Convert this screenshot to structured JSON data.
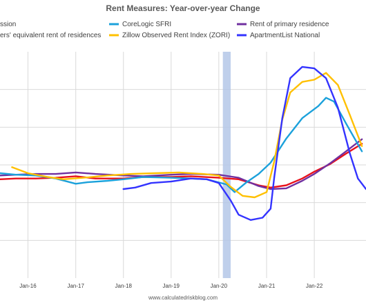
{
  "chart_data": {
    "type": "line",
    "title": "Rent Measures: Year-over-year Change",
    "source": "www.calculatedriskblog.com",
    "xlabel": "",
    "ylabel": "",
    "x_ticks": [
      "Jan-16",
      "Jan-17",
      "Jan-18",
      "Jan-19",
      "Jan-20",
      "Jan-21",
      "Jan-22"
    ],
    "x_range": [
      "2015-06-01",
      "2023-02-01"
    ],
    "y_range": [
      -10,
      20
    ],
    "y_gridlines": [
      -5,
      0,
      5,
      10,
      15
    ],
    "y_tick_labels_visible": false,
    "grid": "vertical and horizontal",
    "legend_placement": "top",
    "shaded_regions": [
      {
        "label": "Recession",
        "start": "2020-02-01",
        "end": "2020-04-01",
        "color": "#b4c7e7"
      }
    ],
    "series": [
      {
        "name": "Recession",
        "legend_text": "ssion",
        "kind": "band",
        "color": "#b4c7e7"
      },
      {
        "name": "Owners' equivalent rent of residences",
        "legend_text": "ers' equivalent rent of residences",
        "color": "#e8111c",
        "points": [
          [
            "2015-06-01",
            3.1
          ],
          [
            "2015-10-01",
            3.2
          ],
          [
            "2016-03-01",
            3.2
          ],
          [
            "2016-08-01",
            3.3
          ],
          [
            "2017-01-01",
            3.5
          ],
          [
            "2017-06-01",
            3.2
          ],
          [
            "2018-01-01",
            3.2
          ],
          [
            "2018-06-01",
            3.4
          ],
          [
            "2019-01-01",
            3.4
          ],
          [
            "2019-06-01",
            3.5
          ],
          [
            "2020-01-01",
            3.3
          ],
          [
            "2020-06-01",
            3.1
          ],
          [
            "2020-11-01",
            2.3
          ],
          [
            "2021-02-01",
            2.0
          ],
          [
            "2021-06-01",
            2.3
          ],
          [
            "2021-10-01",
            3.2
          ],
          [
            "2022-01-01",
            4.1
          ],
          [
            "2022-05-01",
            5.1
          ],
          [
            "2022-09-01",
            6.5
          ],
          [
            "2023-01-01",
            7.8
          ]
        ]
      },
      {
        "name": "Rent of primary residence",
        "legend_text": "Rent of primary residence",
        "color": "#7030a0",
        "points": [
          [
            "2015-06-01",
            3.6
          ],
          [
            "2015-10-01",
            3.7
          ],
          [
            "2016-03-01",
            3.8
          ],
          [
            "2016-08-01",
            3.8
          ],
          [
            "2017-01-01",
            4.0
          ],
          [
            "2017-06-01",
            3.8
          ],
          [
            "2018-01-01",
            3.6
          ],
          [
            "2018-06-01",
            3.5
          ],
          [
            "2019-01-01",
            3.7
          ],
          [
            "2019-06-01",
            3.8
          ],
          [
            "2020-01-01",
            3.7
          ],
          [
            "2020-06-01",
            3.3
          ],
          [
            "2020-11-01",
            2.2
          ],
          [
            "2021-02-01",
            1.8
          ],
          [
            "2021-06-01",
            1.9
          ],
          [
            "2021-10-01",
            2.9
          ],
          [
            "2022-01-01",
            3.8
          ],
          [
            "2022-05-01",
            5.2
          ],
          [
            "2022-09-01",
            6.8
          ],
          [
            "2023-01-01",
            8.4
          ]
        ]
      },
      {
        "name": "CoreLogic SFRI",
        "legend_text": "CoreLogic SFRI",
        "color": "#1ba1db",
        "points": [
          [
            "2015-06-01",
            3.9
          ],
          [
            "2015-10-01",
            3.7
          ],
          [
            "2016-03-01",
            3.6
          ],
          [
            "2016-08-01",
            3.2
          ],
          [
            "2017-01-01",
            2.5
          ],
          [
            "2017-04-01",
            2.7
          ],
          [
            "2017-09-01",
            2.9
          ],
          [
            "2018-01-01",
            3.1
          ],
          [
            "2018-06-01",
            3.4
          ],
          [
            "2019-01-01",
            3.3
          ],
          [
            "2019-06-01",
            3.2
          ],
          [
            "2019-10-01",
            3.1
          ],
          [
            "2020-03-01",
            2.4
          ],
          [
            "2020-05-01",
            1.4
          ],
          [
            "2020-08-01",
            2.7
          ],
          [
            "2020-11-01",
            3.8
          ],
          [
            "2021-02-01",
            5.3
          ],
          [
            "2021-06-01",
            8.5
          ],
          [
            "2021-10-01",
            11.2
          ],
          [
            "2022-02-01",
            12.8
          ],
          [
            "2022-04-01",
            13.9
          ],
          [
            "2022-06-01",
            13.4
          ],
          [
            "2022-09-01",
            10.5
          ],
          [
            "2023-01-01",
            6.8
          ]
        ]
      },
      {
        "name": "Zillow Observed Rent Index (ZORI)",
        "legend_text": "Zillow Observed Rent Index (ZORI)",
        "color": "#ffc000",
        "points": [
          [
            "2015-09-01",
            4.7
          ],
          [
            "2016-01-01",
            3.9
          ],
          [
            "2016-06-01",
            3.4
          ],
          [
            "2016-10-01",
            3.1
          ],
          [
            "2017-03-01",
            3.3
          ],
          [
            "2017-09-01",
            3.6
          ],
          [
            "2018-03-01",
            3.8
          ],
          [
            "2018-09-01",
            3.9
          ],
          [
            "2019-03-01",
            4.0
          ],
          [
            "2019-09-01",
            3.8
          ],
          [
            "2020-01-01",
            3.6
          ],
          [
            "2020-04-01",
            2.1
          ],
          [
            "2020-07-01",
            0.9
          ],
          [
            "2020-10-01",
            0.7
          ],
          [
            "2021-01-01",
            1.4
          ],
          [
            "2021-03-01",
            5.5
          ],
          [
            "2021-05-01",
            11.0
          ],
          [
            "2021-07-01",
            14.6
          ],
          [
            "2021-10-01",
            16.0
          ],
          [
            "2022-01-01",
            16.3
          ],
          [
            "2022-04-01",
            17.2
          ],
          [
            "2022-07-01",
            15.6
          ],
          [
            "2022-10-01",
            11.6
          ],
          [
            "2023-01-01",
            7.5
          ]
        ]
      },
      {
        "name": "ApartmentList National",
        "legend_text": "ApartmentList National",
        "color": "#3333ff",
        "points": [
          [
            "2018-01-01",
            1.8
          ],
          [
            "2018-04-01",
            2.0
          ],
          [
            "2018-08-01",
            2.6
          ],
          [
            "2019-01-01",
            2.8
          ],
          [
            "2019-06-01",
            3.2
          ],
          [
            "2019-10-01",
            3.1
          ],
          [
            "2020-01-01",
            2.6
          ],
          [
            "2020-04-01",
            0.3
          ],
          [
            "2020-06-01",
            -1.6
          ],
          [
            "2020-09-01",
            -2.3
          ],
          [
            "2020-12-01",
            -2.0
          ],
          [
            "2021-02-01",
            -0.8
          ],
          [
            "2021-03-01",
            3.4
          ],
          [
            "2021-05-01",
            11.2
          ],
          [
            "2021-07-01",
            16.5
          ],
          [
            "2021-10-01",
            18.0
          ],
          [
            "2022-01-01",
            17.8
          ],
          [
            "2022-04-01",
            16.5
          ],
          [
            "2022-07-01",
            12.6
          ],
          [
            "2022-10-01",
            6.5
          ],
          [
            "2022-12-01",
            3.2
          ],
          [
            "2023-02-01",
            1.8
          ]
        ]
      }
    ]
  }
}
